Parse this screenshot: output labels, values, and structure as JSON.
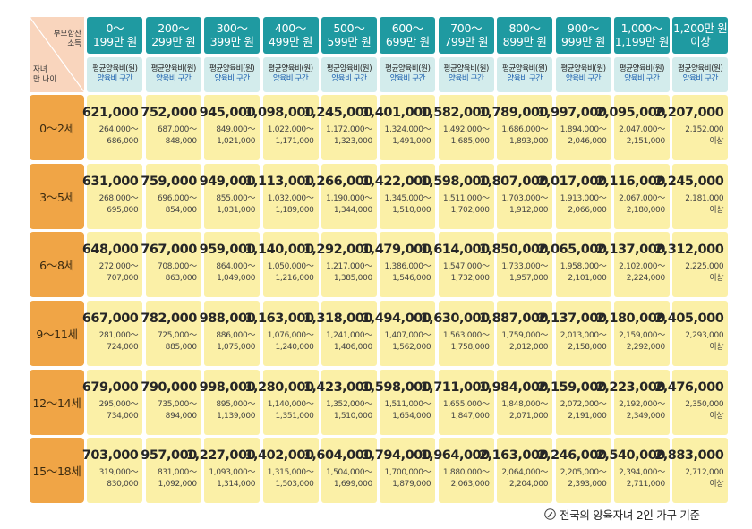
{
  "corner": {
    "top": "부모합산\n소득",
    "bottom": "자녀\n만 나이"
  },
  "colors": {
    "header": "#1f9aa1",
    "subheader": "#d3ecec",
    "age": "#f0a546",
    "cell": "#fbf0a7",
    "corner": "#f9d5bd"
  },
  "columns": [
    "0～\n199만 원",
    "200～\n299만 원",
    "300～\n399만 원",
    "400～\n499만 원",
    "500～\n599만 원",
    "600～\n699만 원",
    "700～\n799만 원",
    "800～\n899만 원",
    "900～\n999만 원",
    "1,000～\n1,199만 원",
    "1,200만 원\n이상"
  ],
  "sub_labels": {
    "avg": "평균양육비(원)",
    "range": "양육비 구간"
  },
  "rows": [
    {
      "age": "0～2세",
      "cells": [
        {
          "avg": "621,000",
          "range": "264,000～\n686,000"
        },
        {
          "avg": "752,000",
          "range": "687,000～\n848,000"
        },
        {
          "avg": "945,000",
          "range": "849,000～\n1,021,000"
        },
        {
          "avg": "1,098,000",
          "range": "1,022,000～\n1,171,000"
        },
        {
          "avg": "1,245,000",
          "range": "1,172,000～\n1,323,000"
        },
        {
          "avg": "1,401,000",
          "range": "1,324,000～\n1,491,000"
        },
        {
          "avg": "1,582,000",
          "range": "1,492,000～\n1,685,000"
        },
        {
          "avg": "1,789,000",
          "range": "1,686,000～\n1,893,000"
        },
        {
          "avg": "1,997,000",
          "range": "1,894,000～\n2,046,000"
        },
        {
          "avg": "2,095,000",
          "range": "2,047,000～\n2,151,000"
        },
        {
          "avg": "2,207,000",
          "range": "2,152,000\n이상"
        }
      ]
    },
    {
      "age": "3～5세",
      "cells": [
        {
          "avg": "631,000",
          "range": "268,000～\n695,000"
        },
        {
          "avg": "759,000",
          "range": "696,000～\n854,000"
        },
        {
          "avg": "949,000",
          "range": "855,000～\n1,031,000"
        },
        {
          "avg": "1,113,000",
          "range": "1,032,000～\n1,189,000"
        },
        {
          "avg": "1,266,000",
          "range": "1,190,000～\n1,344,000"
        },
        {
          "avg": "1,422,000",
          "range": "1,345,000～\n1,510,000"
        },
        {
          "avg": "1,598,000",
          "range": "1,511,000～\n1,702,000"
        },
        {
          "avg": "1,807,000",
          "range": "1,703,000～\n1,912,000"
        },
        {
          "avg": "2,017,000",
          "range": "1,913,000～\n2,066,000"
        },
        {
          "avg": "2,116,000",
          "range": "2,067,000～\n2,180,000"
        },
        {
          "avg": "2,245,000",
          "range": "2,181,000\n이상"
        }
      ]
    },
    {
      "age": "6～8세",
      "cells": [
        {
          "avg": "648,000",
          "range": "272,000～\n707,000"
        },
        {
          "avg": "767,000",
          "range": "708,000～\n863,000"
        },
        {
          "avg": "959,000",
          "range": "864,000～\n1,049,000"
        },
        {
          "avg": "1,140,000",
          "range": "1,050,000～\n1,216,000"
        },
        {
          "avg": "1,292,000",
          "range": "1,217,000～\n1,385,000"
        },
        {
          "avg": "1,479,000",
          "range": "1,386,000～\n1,546,000"
        },
        {
          "avg": "1,614,000",
          "range": "1,547,000～\n1,732,000"
        },
        {
          "avg": "1,850,000",
          "range": "1,733,000～\n1,957,000"
        },
        {
          "avg": "2,065,000",
          "range": "1,958,000～\n2,101,000"
        },
        {
          "avg": "2,137,000",
          "range": "2,102,000～\n2,224,000"
        },
        {
          "avg": "2,312,000",
          "range": "2,225,000\n이상"
        }
      ]
    },
    {
      "age": "9～11세",
      "cells": [
        {
          "avg": "667,000",
          "range": "281,000～\n724,000"
        },
        {
          "avg": "782,000",
          "range": "725,000～\n885,000"
        },
        {
          "avg": "988,000",
          "range": "886,000～\n1,075,000"
        },
        {
          "avg": "1,163,000",
          "range": "1,076,000～\n1,240,000"
        },
        {
          "avg": "1,318,000",
          "range": "1,241,000～\n1,406,000"
        },
        {
          "avg": "1,494,000",
          "range": "1,407,000～\n1,562,000"
        },
        {
          "avg": "1,630,000",
          "range": "1,563,000～\n1,758,000"
        },
        {
          "avg": "1,887,000",
          "range": "1,759,000～\n2,012,000"
        },
        {
          "avg": "2,137,000",
          "range": "2,013,000～\n2,158,000"
        },
        {
          "avg": "2,180,000",
          "range": "2,159,000～\n2,292,000"
        },
        {
          "avg": "2,405,000",
          "range": "2,293,000\n이상"
        }
      ]
    },
    {
      "age": "12～14세",
      "cells": [
        {
          "avg": "679,000",
          "range": "295,000～\n734,000"
        },
        {
          "avg": "790,000",
          "range": "735,000～\n894,000"
        },
        {
          "avg": "998,000",
          "range": "895,000～\n1,139,000"
        },
        {
          "avg": "1,280,000",
          "range": "1,140,000～\n1,351,000"
        },
        {
          "avg": "1,423,000",
          "range": "1,352,000～\n1,510,000"
        },
        {
          "avg": "1,598,000",
          "range": "1,511,000～\n1,654,000"
        },
        {
          "avg": "1,711,000",
          "range": "1,655,000～\n1,847,000"
        },
        {
          "avg": "1,984,000",
          "range": "1,848,000～\n2,071,000"
        },
        {
          "avg": "2,159,000",
          "range": "2,072,000～\n2,191,000"
        },
        {
          "avg": "2,223,000",
          "range": "2,192,000～\n2,349,000"
        },
        {
          "avg": "2,476,000",
          "range": "2,350,000\n이상"
        }
      ]
    },
    {
      "age": "15～18세",
      "cells": [
        {
          "avg": "703,000",
          "range": "319,000～\n830,000"
        },
        {
          "avg": "957,000",
          "range": "831,000～\n1,092,000"
        },
        {
          "avg": "1,227,000",
          "range": "1,093,000～\n1,314,000"
        },
        {
          "avg": "1,402,000",
          "range": "1,315,000～\n1,503,000"
        },
        {
          "avg": "1,604,000",
          "range": "1,504,000～\n1,699,000"
        },
        {
          "avg": "1,794,000",
          "range": "1,700,000～\n1,879,000"
        },
        {
          "avg": "1,964,000",
          "range": "1,880,000～\n2,063,000"
        },
        {
          "avg": "2,163,000",
          "range": "2,064,000～\n2,204,000"
        },
        {
          "avg": "2,246,000",
          "range": "2,205,000～\n2,393,000"
        },
        {
          "avg": "2,540,000",
          "range": "2,394,000～\n2,711,000"
        },
        {
          "avg": "2,883,000",
          "range": "2,712,000\n이상"
        }
      ]
    }
  ],
  "footnote": {
    "icon": "pencil-note-icon",
    "text": "전국의 양육자녀 2인 가구 기준"
  }
}
